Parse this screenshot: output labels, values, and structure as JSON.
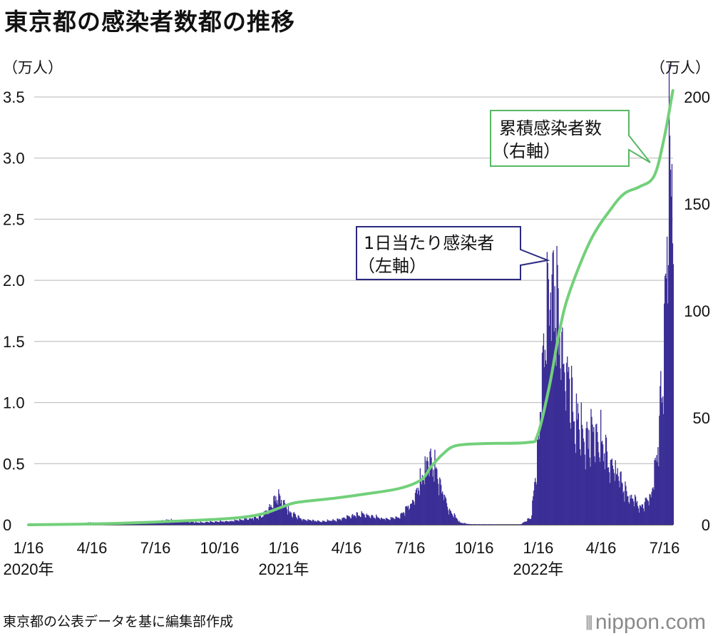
{
  "title": "東京都の感染者数都の推移",
  "source": "東京都の公表データを基に編集部作成",
  "brand": "nippon.com",
  "brand_mark": "|||",
  "colors": {
    "bars": "#3b2f96",
    "line": "#72d07a",
    "grid": "#b5b5b5",
    "callout_left_border": "#2c2a80",
    "callout_right_border": "#57b865"
  },
  "chart_data": {
    "type": "bar+line",
    "x_start": "2020-01-16",
    "x_end": "2022-07-28",
    "xticks": [
      {
        "label": "1/16",
        "year": "2020年",
        "date": "2020-01-16"
      },
      {
        "label": "4/16",
        "year": "",
        "date": "2020-04-16"
      },
      {
        "label": "7/16",
        "year": "",
        "date": "2020-07-16"
      },
      {
        "label": "10/16",
        "year": "",
        "date": "2020-10-16"
      },
      {
        "label": "1/16",
        "year": "2021年",
        "date": "2021-01-16"
      },
      {
        "label": "4/16",
        "year": "",
        "date": "2021-04-16"
      },
      {
        "label": "7/16",
        "year": "",
        "date": "2021-07-16"
      },
      {
        "label": "10/16",
        "year": "",
        "date": "2021-10-16"
      },
      {
        "label": "1/16",
        "year": "2022年",
        "date": "2022-01-16"
      },
      {
        "label": "4/16",
        "year": "",
        "date": "2022-04-16"
      },
      {
        "label": "7/16",
        "year": "",
        "date": "2022-07-16"
      }
    ],
    "left_axis": {
      "unit": "（万人）",
      "ylim": [
        0,
        3.5
      ],
      "ticks": [
        "0",
        "0.5",
        "1.0",
        "1.5",
        "2.0",
        "2.5",
        "3.0",
        "3.5"
      ]
    },
    "right_axis": {
      "unit": "（万人）",
      "ylim": [
        0,
        200
      ],
      "ticks": [
        "0",
        "50",
        "100",
        "150",
        "200"
      ]
    },
    "series": [
      {
        "name": "1日当たり感染者",
        "axis_note": "（左軸）",
        "type": "bar",
        "unit": "万人",
        "anchors": [
          [
            "2020-01-16",
            0
          ],
          [
            "2020-03-25",
            0.005
          ],
          [
            "2020-04-12",
            0.02
          ],
          [
            "2020-05-10",
            0.003
          ],
          [
            "2020-06-15",
            0.005
          ],
          [
            "2020-08-01",
            0.04
          ],
          [
            "2020-09-15",
            0.02
          ],
          [
            "2020-11-01",
            0.03
          ],
          [
            "2020-12-15",
            0.07
          ],
          [
            "2021-01-07",
            0.24
          ],
          [
            "2021-01-25",
            0.1
          ],
          [
            "2021-02-15",
            0.04
          ],
          [
            "2021-03-10",
            0.03
          ],
          [
            "2021-04-01",
            0.04
          ],
          [
            "2021-05-05",
            0.09
          ],
          [
            "2021-06-10",
            0.05
          ],
          [
            "2021-07-01",
            0.07
          ],
          [
            "2021-07-20",
            0.2
          ],
          [
            "2021-08-13",
            0.57
          ],
          [
            "2021-08-28",
            0.35
          ],
          [
            "2021-09-10",
            0.12
          ],
          [
            "2021-09-25",
            0.02
          ],
          [
            "2021-10-10",
            0.004
          ],
          [
            "2021-12-20",
            0.001
          ],
          [
            "2022-01-05",
            0.06
          ],
          [
            "2022-01-15",
            0.6
          ],
          [
            "2022-01-25",
            1.6
          ],
          [
            "2022-02-02",
            2.15
          ],
          [
            "2022-02-12",
            1.75
          ],
          [
            "2022-02-25",
            1.35
          ],
          [
            "2022-03-10",
            0.9
          ],
          [
            "2022-03-25",
            0.75
          ],
          [
            "2022-04-10",
            0.8
          ],
          [
            "2022-04-25",
            0.55
          ],
          [
            "2022-05-10",
            0.42
          ],
          [
            "2022-05-25",
            0.25
          ],
          [
            "2022-06-10",
            0.16
          ],
          [
            "2022-06-25",
            0.22
          ],
          [
            "2022-07-05",
            0.6
          ],
          [
            "2022-07-15",
            1.6
          ],
          [
            "2022-07-22",
            2.95
          ],
          [
            "2022-07-28",
            3.25
          ]
        ]
      },
      {
        "name": "累積感染者数",
        "axis_note": "（右軸）",
        "type": "line",
        "unit": "万人",
        "points": [
          [
            "2020-01-16",
            0
          ],
          [
            "2020-05-01",
            0.5
          ],
          [
            "2020-08-01",
            1.5
          ],
          [
            "2020-11-01",
            3
          ],
          [
            "2020-12-15",
            5
          ],
          [
            "2021-01-15",
            8.5
          ],
          [
            "2021-02-05",
            10.5
          ],
          [
            "2021-04-01",
            12.5
          ],
          [
            "2021-05-15",
            14.5
          ],
          [
            "2021-07-01",
            17
          ],
          [
            "2021-08-01",
            21
          ],
          [
            "2021-08-15",
            27
          ],
          [
            "2021-09-01",
            33
          ],
          [
            "2021-09-20",
            37
          ],
          [
            "2021-11-01",
            38
          ],
          [
            "2022-01-01",
            38.5
          ],
          [
            "2022-01-15",
            42
          ],
          [
            "2022-02-01",
            65
          ],
          [
            "2022-02-15",
            90
          ],
          [
            "2022-03-01",
            108
          ],
          [
            "2022-04-01",
            133
          ],
          [
            "2022-05-01",
            148
          ],
          [
            "2022-05-20",
            155
          ],
          [
            "2022-06-10",
            158
          ],
          [
            "2022-07-01",
            163
          ],
          [
            "2022-07-15",
            180
          ],
          [
            "2022-07-28",
            203
          ]
        ]
      }
    ]
  },
  "callouts": {
    "daily": {
      "line1": "1日当たり感染者",
      "line2": "（左軸）"
    },
    "cumulative": {
      "line1": "累積感染者数",
      "line2": "（右軸）"
    }
  }
}
